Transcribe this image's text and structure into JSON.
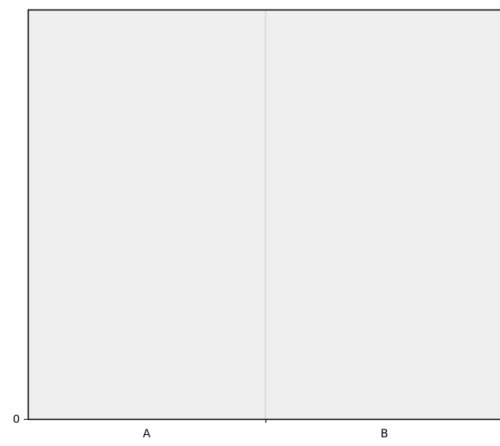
{
  "chart_data": {
    "type": "bar",
    "categories": [
      "A",
      "B"
    ],
    "values": [
      0,
      0
    ],
    "title": "",
    "xlabel": "",
    "ylabel": "",
    "y_ticks": [
      0
    ],
    "ylim": [
      0,
      1
    ],
    "grid": true,
    "legend": "none",
    "colors": {
      "plot_background": "#efefef",
      "axis": "#000000",
      "grid": "#c8c8c8"
    }
  }
}
